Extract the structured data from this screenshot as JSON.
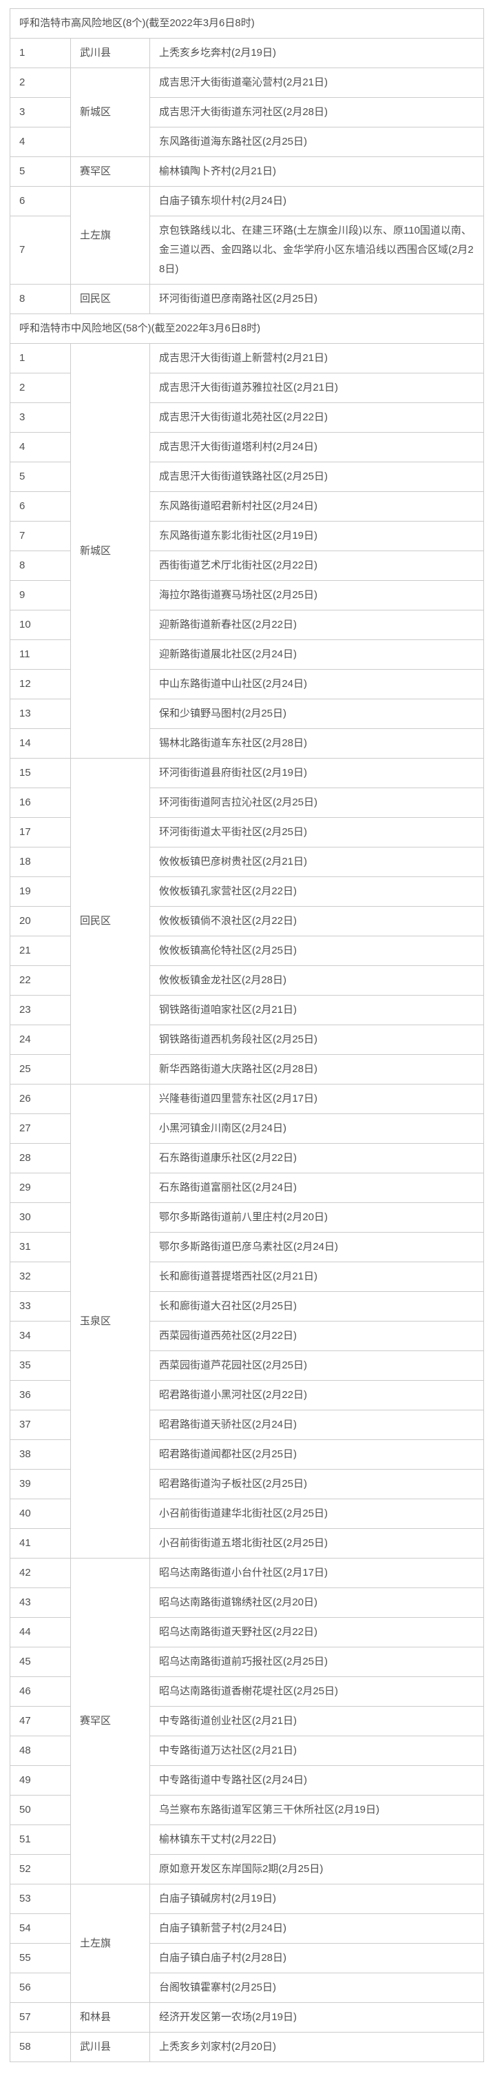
{
  "page": {
    "background_color": "#ffffff",
    "text_color": "#4f4f4f",
    "border_color": "#cccccc"
  },
  "table": {
    "sections": [
      {
        "title": "呼和浩特市高风险地区(8个)(截至2022年3月6日8时)",
        "rows": [
          {
            "no": "1",
            "district": "武川县",
            "district_span": 1,
            "place": "上秃亥乡圪奔村(2月19日)"
          },
          {
            "no": "2",
            "district": "新城区",
            "district_span": 3,
            "place": "成吉思汗大街街道毫沁营村(2月21日)"
          },
          {
            "no": "3",
            "place": "成吉思汗大街街道东河社区(2月28日)"
          },
          {
            "no": "4",
            "place": "东风路街道海东路社区(2月25日)"
          },
          {
            "no": "5",
            "district": "赛罕区",
            "district_span": 1,
            "place": "榆林镇陶卜齐村(2月21日)"
          },
          {
            "no": "6",
            "district": "土左旗",
            "district_span": 2,
            "place": "白庙子镇东坝什村(2月24日)"
          },
          {
            "no": "7",
            "place": "京包铁路线以北、在建三环路(土左旗金川段)以东、原110国道以南、金三道以西、金四路以北、金华学府小区东墙沿线以西围合区域(2月28日)"
          },
          {
            "no": "8",
            "district": "回民区",
            "district_span": 1,
            "place": "环河街街道巴彦南路社区(2月25日)"
          }
        ]
      },
      {
        "title": "呼和浩特市中风险地区(58个)(截至2022年3月6日8时)",
        "rows": [
          {
            "no": "1",
            "district": "新城区",
            "district_span": 14,
            "place": "成吉思汗大街街道上新营村(2月21日)"
          },
          {
            "no": "2",
            "place": "成吉思汗大街街道苏雅拉社区(2月21日)"
          },
          {
            "no": "3",
            "place": "成吉思汗大街街道北苑社区(2月22日)"
          },
          {
            "no": "4",
            "place": "成吉思汗大街街道塔利村(2月24日)"
          },
          {
            "no": "5",
            "place": "成吉思汗大街街道铁路社区(2月25日)"
          },
          {
            "no": "6",
            "place": "东风路街道昭君新村社区(2月24日)"
          },
          {
            "no": "7",
            "place": "东风路街道东影北街社区(2月19日)"
          },
          {
            "no": "8",
            "place": "西街街道艺术厅北街社区(2月22日)"
          },
          {
            "no": "9",
            "place": "海拉尔路街道赛马场社区(2月25日)"
          },
          {
            "no": "10",
            "place": "迎新路街道新春社区(2月22日)"
          },
          {
            "no": "11",
            "place": "迎新路街道展北社区(2月24日)"
          },
          {
            "no": "12",
            "place": "中山东路街道中山社区(2月24日)"
          },
          {
            "no": "13",
            "place": "保和少镇野马图村(2月25日)"
          },
          {
            "no": "14",
            "place": "锡林北路街道车东社区(2月28日)"
          },
          {
            "no": "15",
            "district": "回民区",
            "district_span": 11,
            "place": "环河街街道县府街社区(2月19日)"
          },
          {
            "no": "16",
            "place": "环河街街道阿吉拉沁社区(2月25日)"
          },
          {
            "no": "17",
            "place": "环河街街道太平街社区(2月25日)"
          },
          {
            "no": "18",
            "place": "攸攸板镇巴彦树贵社区(2月21日)"
          },
          {
            "no": "19",
            "place": "攸攸板镇孔家营社区(2月22日)"
          },
          {
            "no": "20",
            "place": "攸攸板镇倘不浪社区(2月22日)"
          },
          {
            "no": "21",
            "place": "攸攸板镇高伦特社区(2月25日)"
          },
          {
            "no": "22",
            "place": "攸攸板镇金龙社区(2月28日)"
          },
          {
            "no": "23",
            "place": "钢铁路街道咱家社区(2月21日)"
          },
          {
            "no": "24",
            "place": "钢铁路街道西机务段社区(2月25日)"
          },
          {
            "no": "25",
            "place": "新华西路街道大庆路社区(2月28日)"
          },
          {
            "no": "26",
            "district": "玉泉区",
            "district_span": 16,
            "place": "兴隆巷街道四里营东社区(2月17日)"
          },
          {
            "no": "27",
            "place": "小黑河镇金川南区(2月24日)"
          },
          {
            "no": "28",
            "place": "石东路街道康乐社区(2月22日)"
          },
          {
            "no": "29",
            "place": "石东路街道富丽社区(2月24日)"
          },
          {
            "no": "30",
            "place": "鄂尔多斯路街道前八里庄村(2月20日)"
          },
          {
            "no": "31",
            "place": "鄂尔多斯路街道巴彦乌素社区(2月24日)"
          },
          {
            "no": "32",
            "place": "长和廊街道菩提塔西社区(2月21日)"
          },
          {
            "no": "33",
            "place": "长和廊街道大召社区(2月25日)"
          },
          {
            "no": "34",
            "place": "西菜园街道西苑社区(2月22日)"
          },
          {
            "no": "35",
            "place": "西菜园街道芦花园社区(2月25日)"
          },
          {
            "no": "36",
            "place": "昭君路街道小黑河社区(2月22日)"
          },
          {
            "no": "37",
            "place": "昭君路街道天骄社区(2月24日)"
          },
          {
            "no": "38",
            "place": "昭君路街道闻都社区(2月25日)"
          },
          {
            "no": "39",
            "place": "昭君路街道沟子板社区(2月25日)"
          },
          {
            "no": "40",
            "place": "小召前街街道建华北街社区(2月25日)"
          },
          {
            "no": "41",
            "place": "小召前街街道五塔北街社区(2月25日)"
          },
          {
            "no": "42",
            "district": "赛罕区",
            "district_span": 11,
            "place": "昭乌达南路街道小台什社区(2月17日)"
          },
          {
            "no": "43",
            "place": "昭乌达南路街道锦绣社区(2月20日)"
          },
          {
            "no": "44",
            "place": "昭乌达南路街道天野社区(2月22日)"
          },
          {
            "no": "45",
            "place": "昭乌达南路街道前巧报社区(2月25日)"
          },
          {
            "no": "46",
            "place": "昭乌达南路街道香榭花堤社区(2月25日)"
          },
          {
            "no": "47",
            "place": "中专路街道创业社区(2月21日)"
          },
          {
            "no": "48",
            "place": "中专路街道万达社区(2月21日)"
          },
          {
            "no": "49",
            "place": "中专路街道中专路社区(2月24日)"
          },
          {
            "no": "50",
            "place": "乌兰察布东路街道军区第三干休所社区(2月19日)"
          },
          {
            "no": "51",
            "place": "榆林镇东干丈村(2月22日)"
          },
          {
            "no": "52",
            "place": "原如意开发区东岸国际2期(2月25日)"
          },
          {
            "no": "53",
            "district": "土左旗",
            "district_span": 4,
            "place": "白庙子镇碱房村(2月19日)"
          },
          {
            "no": "54",
            "place": "白庙子镇新营子村(2月24日)"
          },
          {
            "no": "55",
            "place": "白庙子镇白庙子村(2月28日)"
          },
          {
            "no": "56",
            "place": "台阁牧镇霍寨村(2月25日)"
          },
          {
            "no": "57",
            "district": "和林县",
            "district_span": 1,
            "place": "经济开发区第一农场(2月19日)"
          },
          {
            "no": "58",
            "district": "武川县",
            "district_span": 1,
            "place": "上秃亥乡刘家村(2月20日)"
          }
        ]
      }
    ]
  }
}
